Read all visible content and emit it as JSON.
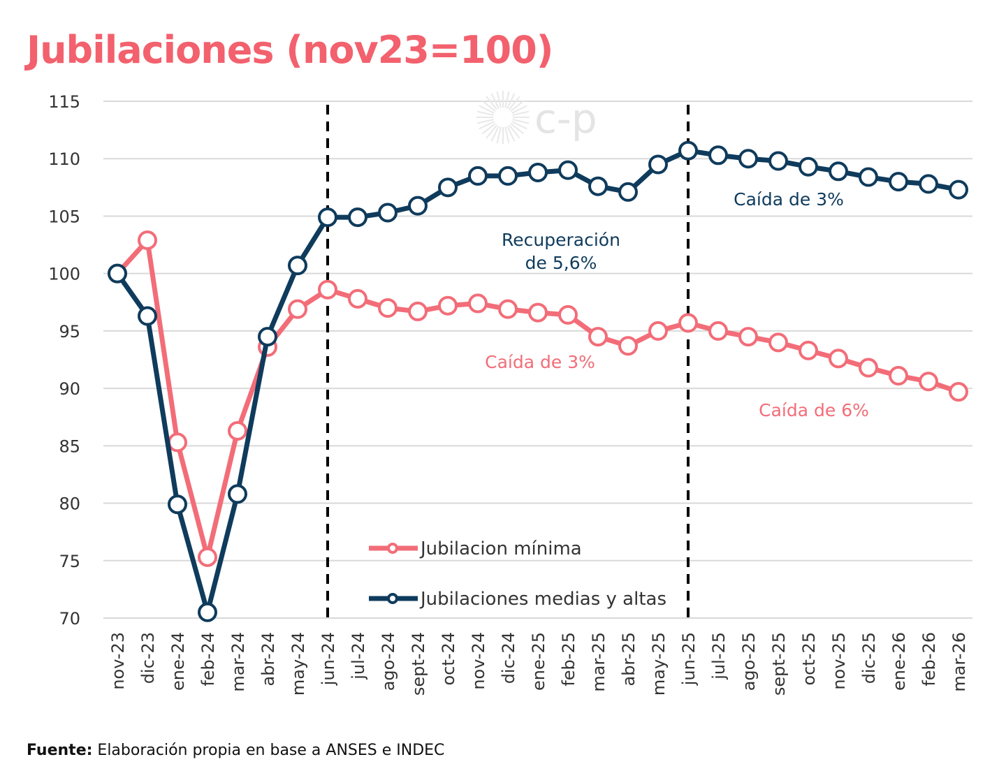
{
  "title": "Jubilaciones (nov23=100)",
  "watermark": "c-p",
  "source": {
    "label": "Fuente:",
    "text": "Elaboración propia en base a ANSES e INDEC"
  },
  "colors": {
    "minima": "#f26d78",
    "medias": "#0f3b5c",
    "grid": "#d9d9d9"
  },
  "chart_data": {
    "type": "line",
    "title": "Jubilaciones (nov23=100)",
    "categories": [
      "nov-23",
      "dic-23",
      "ene-24",
      "feb-24",
      "mar-24",
      "abr-24",
      "may-24",
      "jun-24",
      "jul-24",
      "ago-24",
      "sept-24",
      "oct-24",
      "nov-24",
      "dic-24",
      "ene-25",
      "feb-25",
      "mar-25",
      "abr-25",
      "may-25",
      "jun-25",
      "jul-25",
      "ago-25",
      "sept-25",
      "oct-25",
      "nov-25",
      "dic-25",
      "ene-26",
      "feb-26",
      "mar-26"
    ],
    "ylim": [
      70,
      115
    ],
    "yticks": [
      70,
      75,
      80,
      85,
      90,
      95,
      100,
      105,
      110,
      115
    ],
    "grid": true,
    "legend_position": "bottom-center",
    "series": [
      {
        "name": "Jubilacion mínima",
        "key": "minima",
        "values": [
          100,
          102.9,
          85.3,
          75.3,
          86.3,
          93.6,
          96.9,
          98.6,
          97.8,
          97.0,
          96.7,
          97.2,
          97.4,
          96.9,
          96.6,
          96.4,
          94.5,
          93.7,
          95.0,
          95.7,
          95.0,
          94.5,
          94.0,
          93.3,
          92.6,
          91.8,
          91.1,
          90.6,
          89.7
        ]
      },
      {
        "name": "Jubilaciones medias y altas",
        "key": "medias",
        "values": [
          100,
          96.3,
          79.9,
          70.5,
          80.8,
          94.5,
          100.7,
          104.9,
          104.9,
          105.3,
          105.9,
          107.5,
          108.5,
          108.5,
          108.8,
          109.0,
          107.6,
          107.1,
          109.5,
          110.7,
          110.3,
          110.0,
          109.8,
          109.3,
          108.9,
          108.4,
          108.0,
          107.8,
          107.3
        ]
      }
    ],
    "markers": [
      {
        "type": "vertical-dashed",
        "at": "jun-24"
      },
      {
        "type": "vertical-dashed",
        "at": "jun-25"
      }
    ],
    "annotations": [
      {
        "id": "recuperacion",
        "lines": [
          "Recuperación",
          "de 5,6%"
        ],
        "color": "#0f3b5c"
      },
      {
        "id": "caida-medias",
        "lines": [
          "Caída de 3%"
        ],
        "color": "#0f3b5c"
      },
      {
        "id": "caida-minima-1",
        "lines": [
          "Caída de 3%"
        ],
        "color": "#f26d78"
      },
      {
        "id": "caida-minima-2",
        "lines": [
          "Caída de 6%"
        ],
        "color": "#f26d78"
      }
    ]
  }
}
